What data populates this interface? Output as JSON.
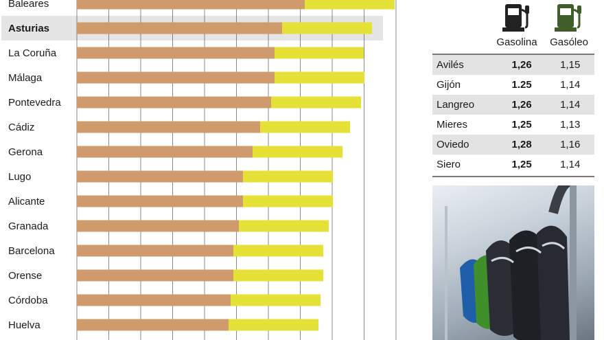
{
  "chart_data": {
    "type": "bar",
    "stacked": true,
    "orientation": "horizontal",
    "categories": [
      "Baleares",
      "Asturias",
      "La Coruña",
      "Málaga",
      "Pontevedra",
      "Cádiz",
      "Gerona",
      "Lugo",
      "Alicante",
      "Granada",
      "Barcelona",
      "Orense",
      "Córdoba",
      "Huelva"
    ],
    "highlight": "Asturias",
    "series": [
      {
        "values": [
          332,
          299,
          288,
          288,
          283,
          267,
          256,
          242,
          242,
          236,
          228,
          228,
          224,
          221
        ]
      },
      {
        "values": [
          131,
          131,
          130,
          131,
          131,
          131,
          131,
          131,
          131,
          131,
          131,
          131,
          131,
          131
        ]
      }
    ],
    "xlim": [
      0,
      465
    ],
    "grid": true,
    "colors": {
      "series1": "#cf9a6c",
      "series2": "#e6e136",
      "highlight_band": "#e5e5e5"
    }
  },
  "prices_table": {
    "headers": {
      "gasolina": "Gasolina",
      "gasoleo": "Gasóleo"
    },
    "rows": [
      {
        "city": "Avilés",
        "gasolina": "1,26",
        "gasoleo": "1,15"
      },
      {
        "city": "Gijón",
        "gasolina": "1.25",
        "gasoleo": "1,14"
      },
      {
        "city": "Langreo",
        "gasolina": "1,26",
        "gasoleo": "1,14"
      },
      {
        "city": "Mieres",
        "gasolina": "1,25",
        "gasoleo": "1,13"
      },
      {
        "city": "Oviedo",
        "gasolina": "1,28",
        "gasoleo": "1,16"
      },
      {
        "city": "Siero",
        "gasolina": "1,25",
        "gasoleo": "1,14"
      }
    ]
  },
  "icons": {
    "gasolina": "fuel-pump-icon",
    "gasoleo": "fuel-pump-icon"
  },
  "colors": {
    "pump_gasolina": "#222222",
    "pump_gasoleo": "#3f5e2a"
  }
}
